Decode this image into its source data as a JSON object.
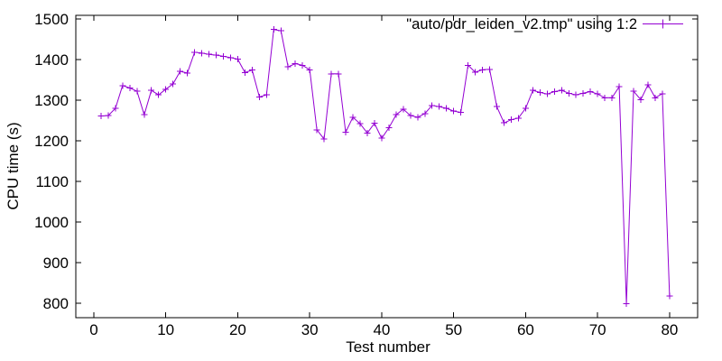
{
  "canvas": {
    "background": "#ffffff",
    "border_color": "#000000",
    "text_color": "#000000"
  },
  "chart_data": {
    "type": "line",
    "title": "",
    "xlabel": "Test number",
    "ylabel": "CPU time (s)",
    "xlim": [
      -2.5,
      83.9
    ],
    "ylim": [
      764,
      1509
    ],
    "x_ticks": [
      0,
      10,
      20,
      30,
      40,
      50,
      60,
      70,
      80
    ],
    "y_ticks": [
      800,
      900,
      1000,
      1100,
      1200,
      1300,
      1400,
      1500
    ],
    "grid": false,
    "legend_position": "top-right-inside",
    "marker": "plus",
    "line_color": "#9400d3",
    "series": [
      {
        "name": "\"auto/pdr_leiden_v2.tmp\" using 1:2",
        "x": [
          1,
          2,
          3,
          4,
          5,
          6,
          7,
          8,
          9,
          10,
          11,
          12,
          13,
          14,
          15,
          16,
          17,
          18,
          19,
          20,
          21,
          22,
          23,
          24,
          25,
          26,
          27,
          28,
          29,
          30,
          31,
          32,
          33,
          34,
          35,
          36,
          37,
          38,
          39,
          40,
          41,
          42,
          43,
          44,
          45,
          46,
          47,
          48,
          49,
          50,
          51,
          52,
          53,
          54,
          55,
          56,
          57,
          58,
          59,
          60,
          61,
          62,
          63,
          64,
          65,
          66,
          67,
          68,
          69,
          70,
          71,
          72,
          73,
          74,
          75,
          76,
          77,
          78,
          79,
          80
        ],
        "values": [
          1261,
          1262,
          1280,
          1336,
          1330,
          1322,
          1264,
          1324,
          1313,
          1327,
          1340,
          1371,
          1367,
          1418,
          1416,
          1413,
          1411,
          1408,
          1405,
          1401,
          1368,
          1374,
          1308,
          1313,
          1474,
          1471,
          1382,
          1390,
          1386,
          1375,
          1227,
          1204,
          1365,
          1365,
          1221,
          1258,
          1242,
          1219,
          1243,
          1206,
          1232,
          1264,
          1278,
          1262,
          1258,
          1267,
          1287,
          1284,
          1280,
          1273,
          1270,
          1386,
          1369,
          1375,
          1376,
          1284,
          1244,
          1252,
          1256,
          1280,
          1324,
          1319,
          1315,
          1321,
          1324,
          1317,
          1313,
          1317,
          1321,
          1315,
          1306,
          1306,
          1333,
          798,
          1322,
          1301,
          1338,
          1306,
          1316,
          817
        ]
      }
    ]
  }
}
